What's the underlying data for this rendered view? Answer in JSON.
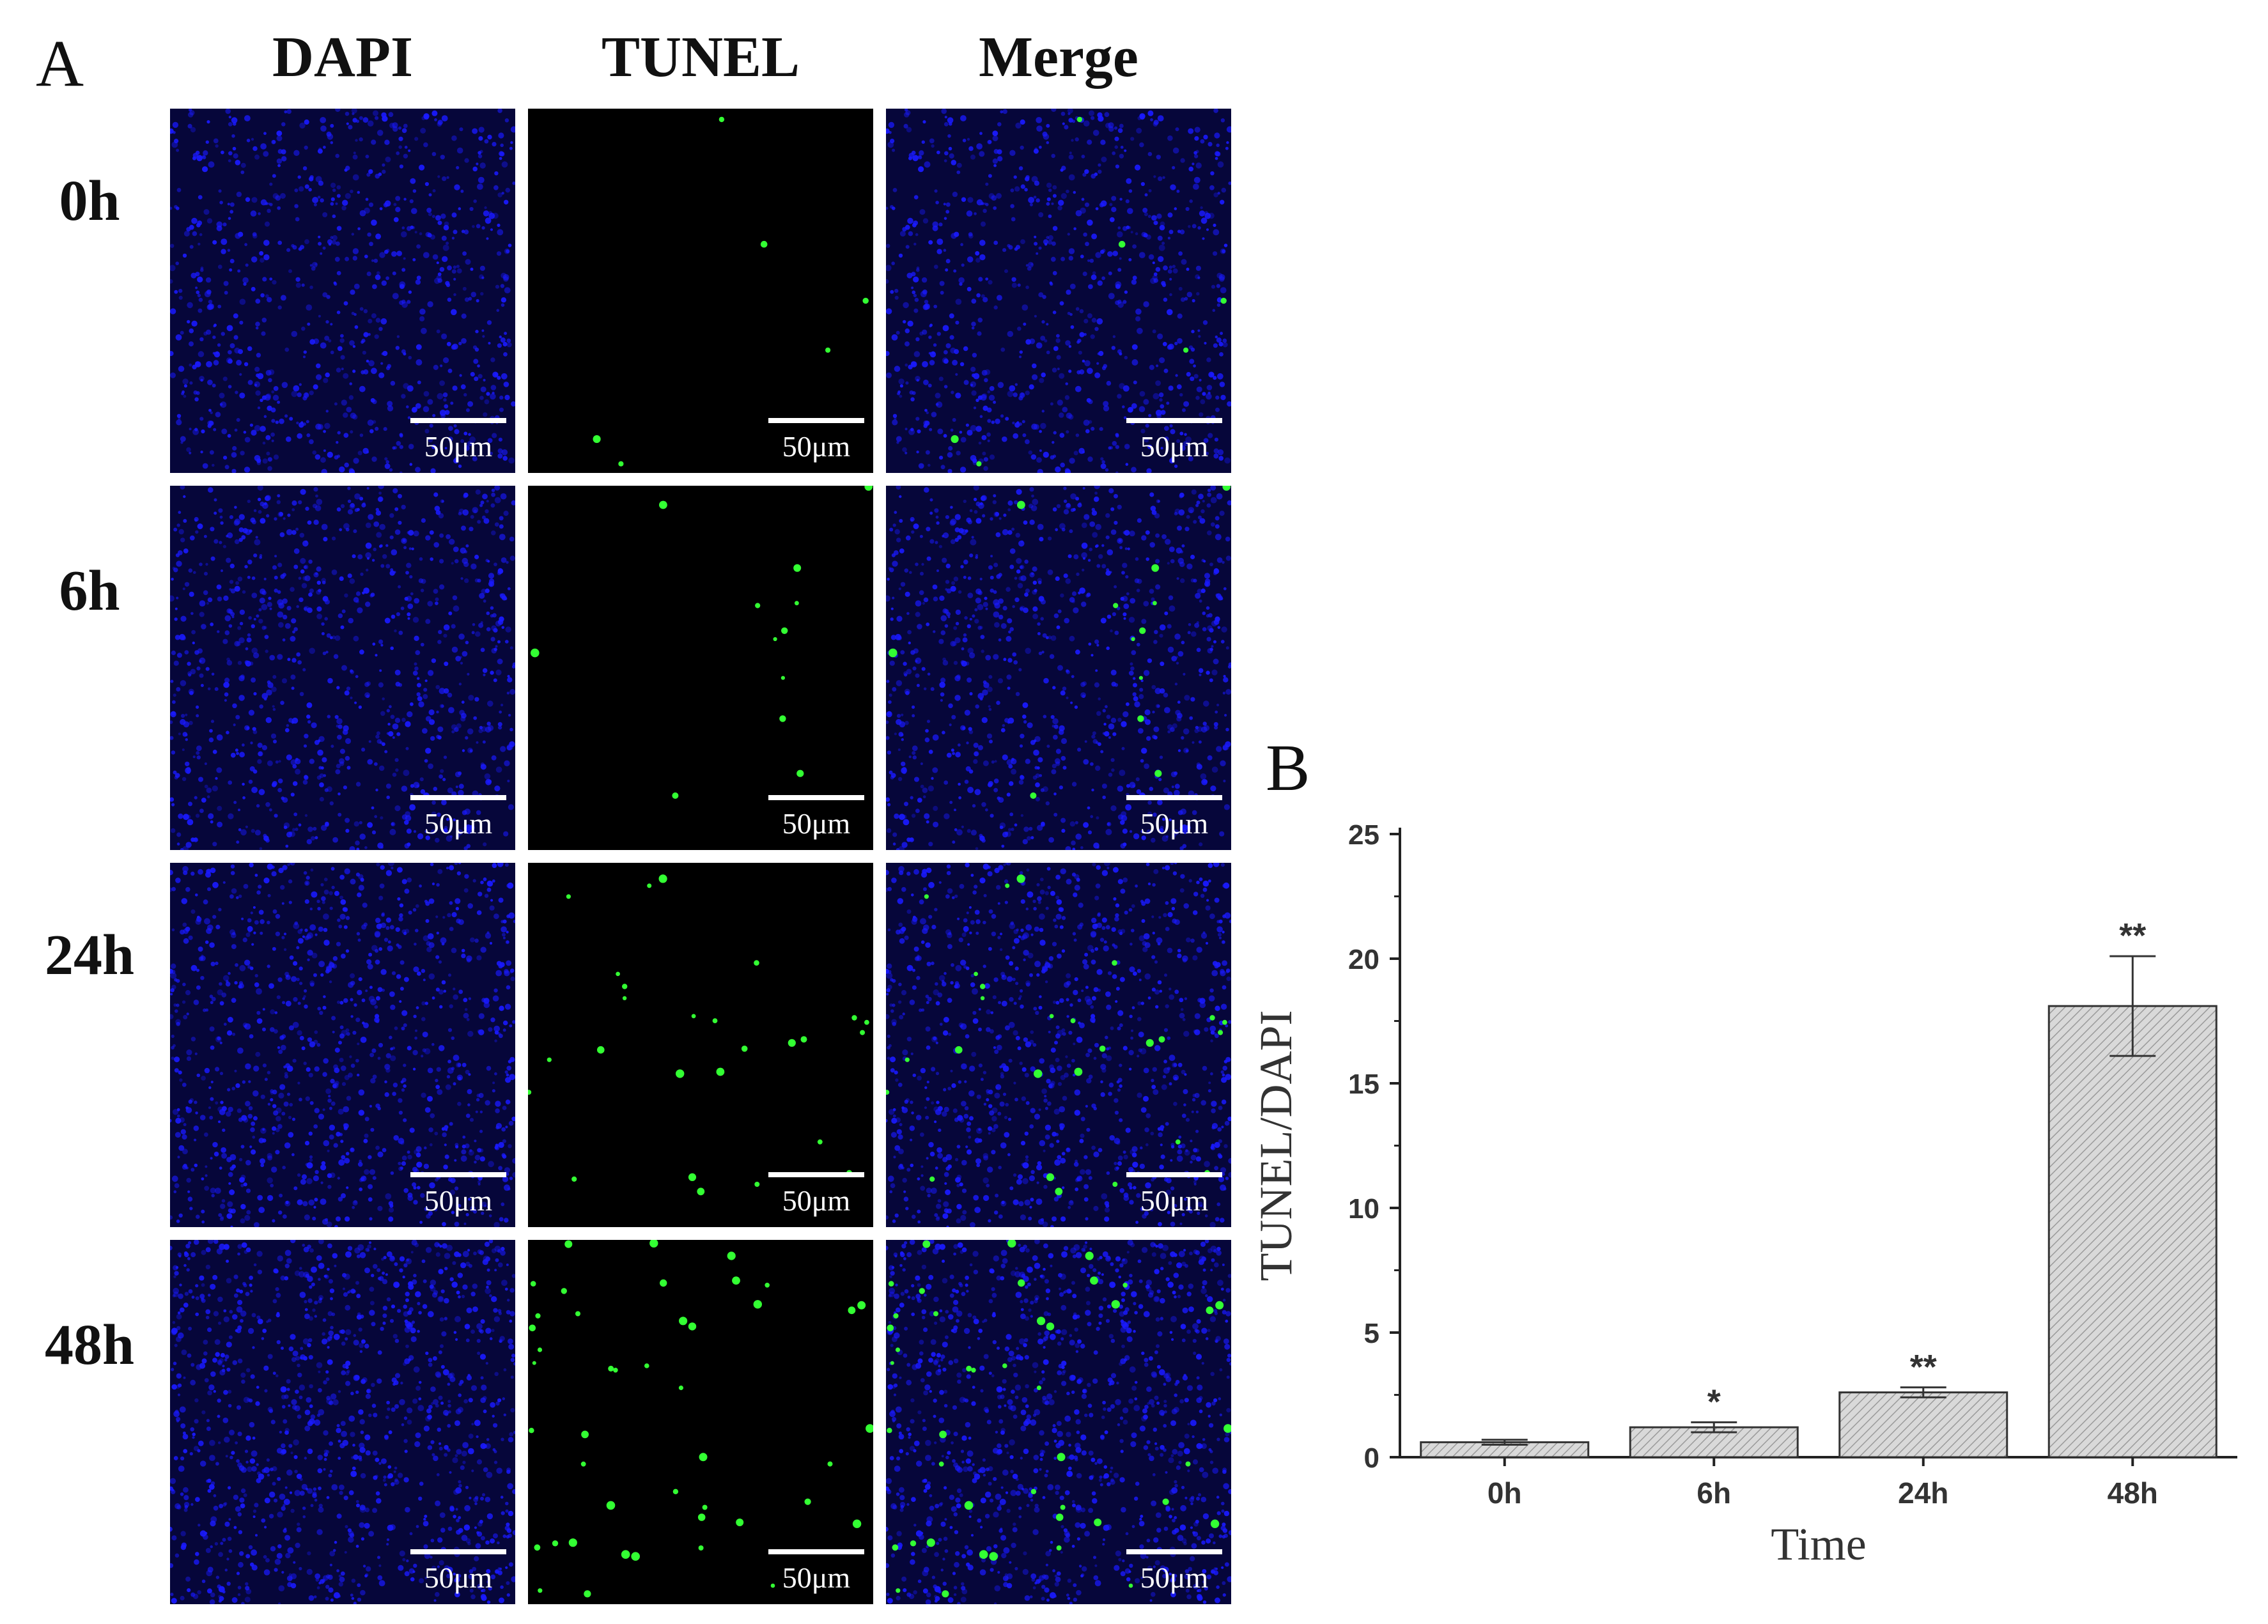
{
  "panel_a": {
    "letter": "A",
    "columns": [
      "DAPI",
      "TUNEL",
      "Merge"
    ],
    "rows": [
      "0h",
      "6h",
      "24h",
      "48h"
    ],
    "scale_bar_label": "50μm",
    "nuclei_color": "#1a1aff",
    "tunel_color": "#33ff33",
    "background_color": "#000000",
    "tunel_density": [
      6,
      12,
      26,
      44
    ]
  },
  "panel_b": {
    "letter": "B"
  },
  "chart_data": {
    "type": "bar",
    "categories": [
      "0h",
      "6h",
      "24h",
      "48h"
    ],
    "values": [
      0.6,
      1.2,
      2.6,
      18.1
    ],
    "errors": [
      0.1,
      0.2,
      0.2,
      2.0
    ],
    "significance": [
      "",
      "*",
      "**",
      "**"
    ],
    "xlabel": "Time",
    "ylabel": "TUNEL/DAPI",
    "ylim": [
      0,
      25
    ],
    "yticks": [
      0,
      5,
      10,
      15,
      20,
      25
    ],
    "grid": false,
    "bar_color": "#d4d4d4",
    "bar_pattern": "diagonal-hatch"
  }
}
